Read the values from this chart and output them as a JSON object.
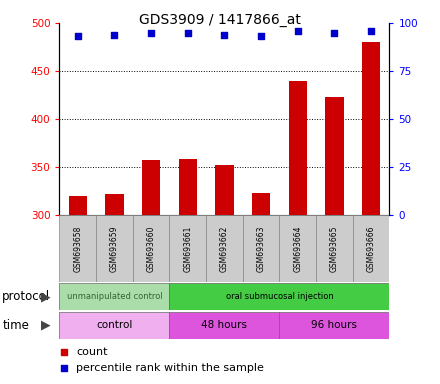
{
  "title": "GDS3909 / 1417866_at",
  "samples": [
    "GSM693658",
    "GSM693659",
    "GSM693660",
    "GSM693661",
    "GSM693662",
    "GSM693663",
    "GSM693664",
    "GSM693665",
    "GSM693666"
  ],
  "counts": [
    320,
    322,
    357,
    358,
    352,
    323,
    440,
    423,
    480
  ],
  "percentile_ranks": [
    93,
    94,
    95,
    95,
    94,
    93,
    96,
    95,
    96
  ],
  "ylim_left": [
    300,
    500
  ],
  "ylim_right": [
    0,
    100
  ],
  "yticks_left": [
    300,
    350,
    400,
    450,
    500
  ],
  "yticks_right": [
    0,
    25,
    50,
    75,
    100
  ],
  "bar_color": "#cc0000",
  "dot_color": "#0000cc",
  "protocol_groups": [
    {
      "label": "unmanipulated control",
      "start": 0,
      "end": 3,
      "color": "#aaddaa"
    },
    {
      "label": "oral submucosal injection",
      "start": 3,
      "end": 9,
      "color": "#44cc44"
    }
  ],
  "time_groups": [
    {
      "label": "control",
      "start": 0,
      "end": 3,
      "color": "#f0b0f0"
    },
    {
      "label": "48 hours",
      "start": 3,
      "end": 6,
      "color": "#dd55dd"
    },
    {
      "label": "96 hours",
      "start": 6,
      "end": 9,
      "color": "#dd55dd"
    }
  ],
  "protocol_label": "protocol",
  "time_label": "time",
  "legend_count": "count",
  "legend_percentile": "percentile rank within the sample",
  "background_color": "#ffffff",
  "plot_bg_color": "#ffffff",
  "sample_box_color": "#cccccc"
}
